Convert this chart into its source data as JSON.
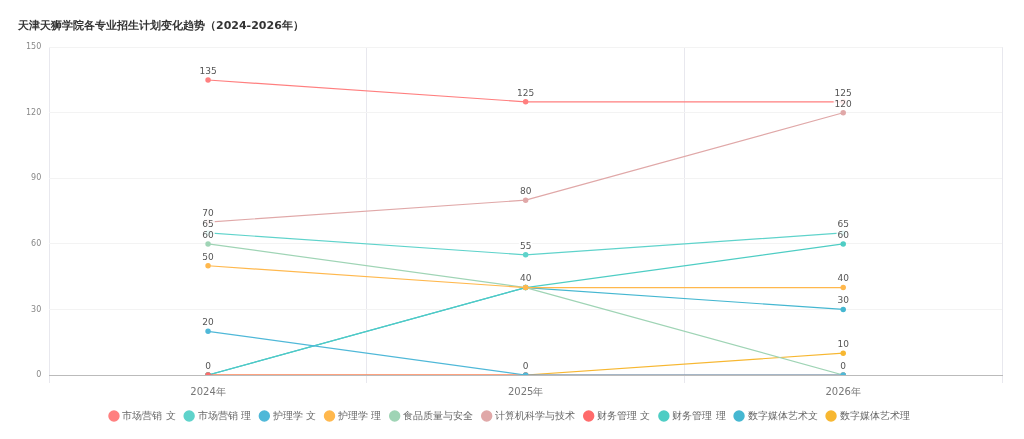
{
  "chart_data": {
    "type": "line",
    "title": "天津天狮学院各专业招生计划变化趋势（2024-2026年）",
    "categories": [
      "2024年",
      "2025年",
      "2026年"
    ],
    "ylim": [
      0,
      150
    ],
    "yticks": [
      0,
      30,
      60,
      90,
      120,
      150
    ],
    "grid": true,
    "legend": "bottom",
    "marker": "circle",
    "line_style": "solid",
    "series": [
      {
        "name": "市场营销 文",
        "color": "#ff7f7f",
        "values": [
          135,
          125,
          125
        ],
        "value_labels": [
          "135",
          "125",
          "125"
        ]
      },
      {
        "name": "市场营销 理",
        "color": "#5fd3cb",
        "values": [
          65,
          55,
          65
        ],
        "value_labels": [
          "65",
          "55",
          "65"
        ]
      },
      {
        "name": "护理学 文",
        "color": "#4fb8d8",
        "values": [
          20,
          0,
          0
        ],
        "value_labels": [
          "20",
          "0",
          null
        ]
      },
      {
        "name": "护理学 理",
        "color": "#ffb84d",
        "values": [
          50,
          40,
          40
        ],
        "value_labels": [
          "50",
          "40",
          "40"
        ]
      },
      {
        "name": "食品质量与安全",
        "color": "#9fd4b5",
        "values": [
          60,
          40,
          0
        ],
        "value_labels": [
          "60",
          null,
          "0"
        ]
      },
      {
        "name": "计算机科学与技术",
        "color": "#e0a8a8",
        "values": [
          70,
          80,
          120
        ],
        "value_labels": [
          "70",
          "80",
          "120"
        ]
      },
      {
        "name": "财务管理 文",
        "color": "#ff6b6b",
        "values": [
          0,
          0,
          0
        ],
        "value_labels": [
          "0",
          null,
          null
        ]
      },
      {
        "name": "财务管理 理",
        "color": "#4ecdc4",
        "values": [
          0,
          40,
          60
        ],
        "value_labels": [
          null,
          null,
          "60"
        ]
      },
      {
        "name": "数字媒体艺术文",
        "color": "#45b7d1",
        "values": [
          0,
          40,
          30
        ],
        "value_labels": [
          null,
          null,
          "30"
        ]
      },
      {
        "name": "数字媒体艺术理",
        "color": "#f7b731",
        "values": [
          0,
          0,
          10
        ],
        "value_labels": [
          null,
          null,
          "10"
        ]
      }
    ]
  }
}
